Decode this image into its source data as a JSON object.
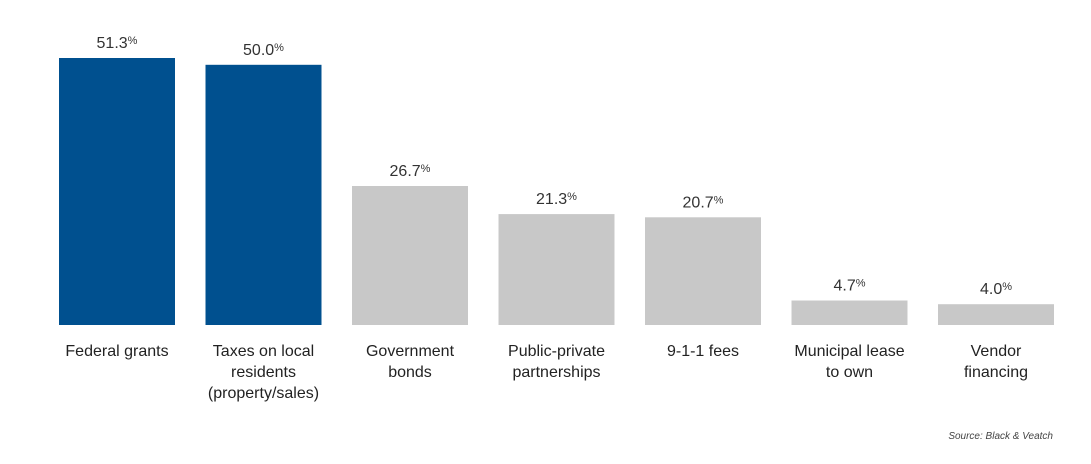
{
  "colors": {
    "highlight": "#00508f",
    "default": "#c8c8c8"
  },
  "chart_data": {
    "type": "bar",
    "categories": [
      [
        "Federal grants"
      ],
      [
        "Taxes on local",
        "residents",
        "(property/sales)"
      ],
      [
        "Government",
        "bonds"
      ],
      [
        "Public-private",
        "partnerships"
      ],
      [
        "9-1-1 fees"
      ],
      [
        "Municipal lease",
        "to own"
      ],
      [
        "Vendor",
        "financing"
      ]
    ],
    "values": [
      51.3,
      50.0,
      26.7,
      21.3,
      20.7,
      4.7,
      4.0
    ],
    "value_labels": [
      "51.3",
      "50.0",
      "26.7",
      "21.3",
      "20.7",
      "4.7",
      "4.0"
    ],
    "unit": "%",
    "highlighted": [
      true,
      true,
      false,
      false,
      false,
      false,
      false
    ],
    "ylim": [
      0,
      51.3
    ],
    "grid": false,
    "title": "",
    "xlabel": "",
    "ylabel": ""
  },
  "source": "Source: Black & Veatch"
}
